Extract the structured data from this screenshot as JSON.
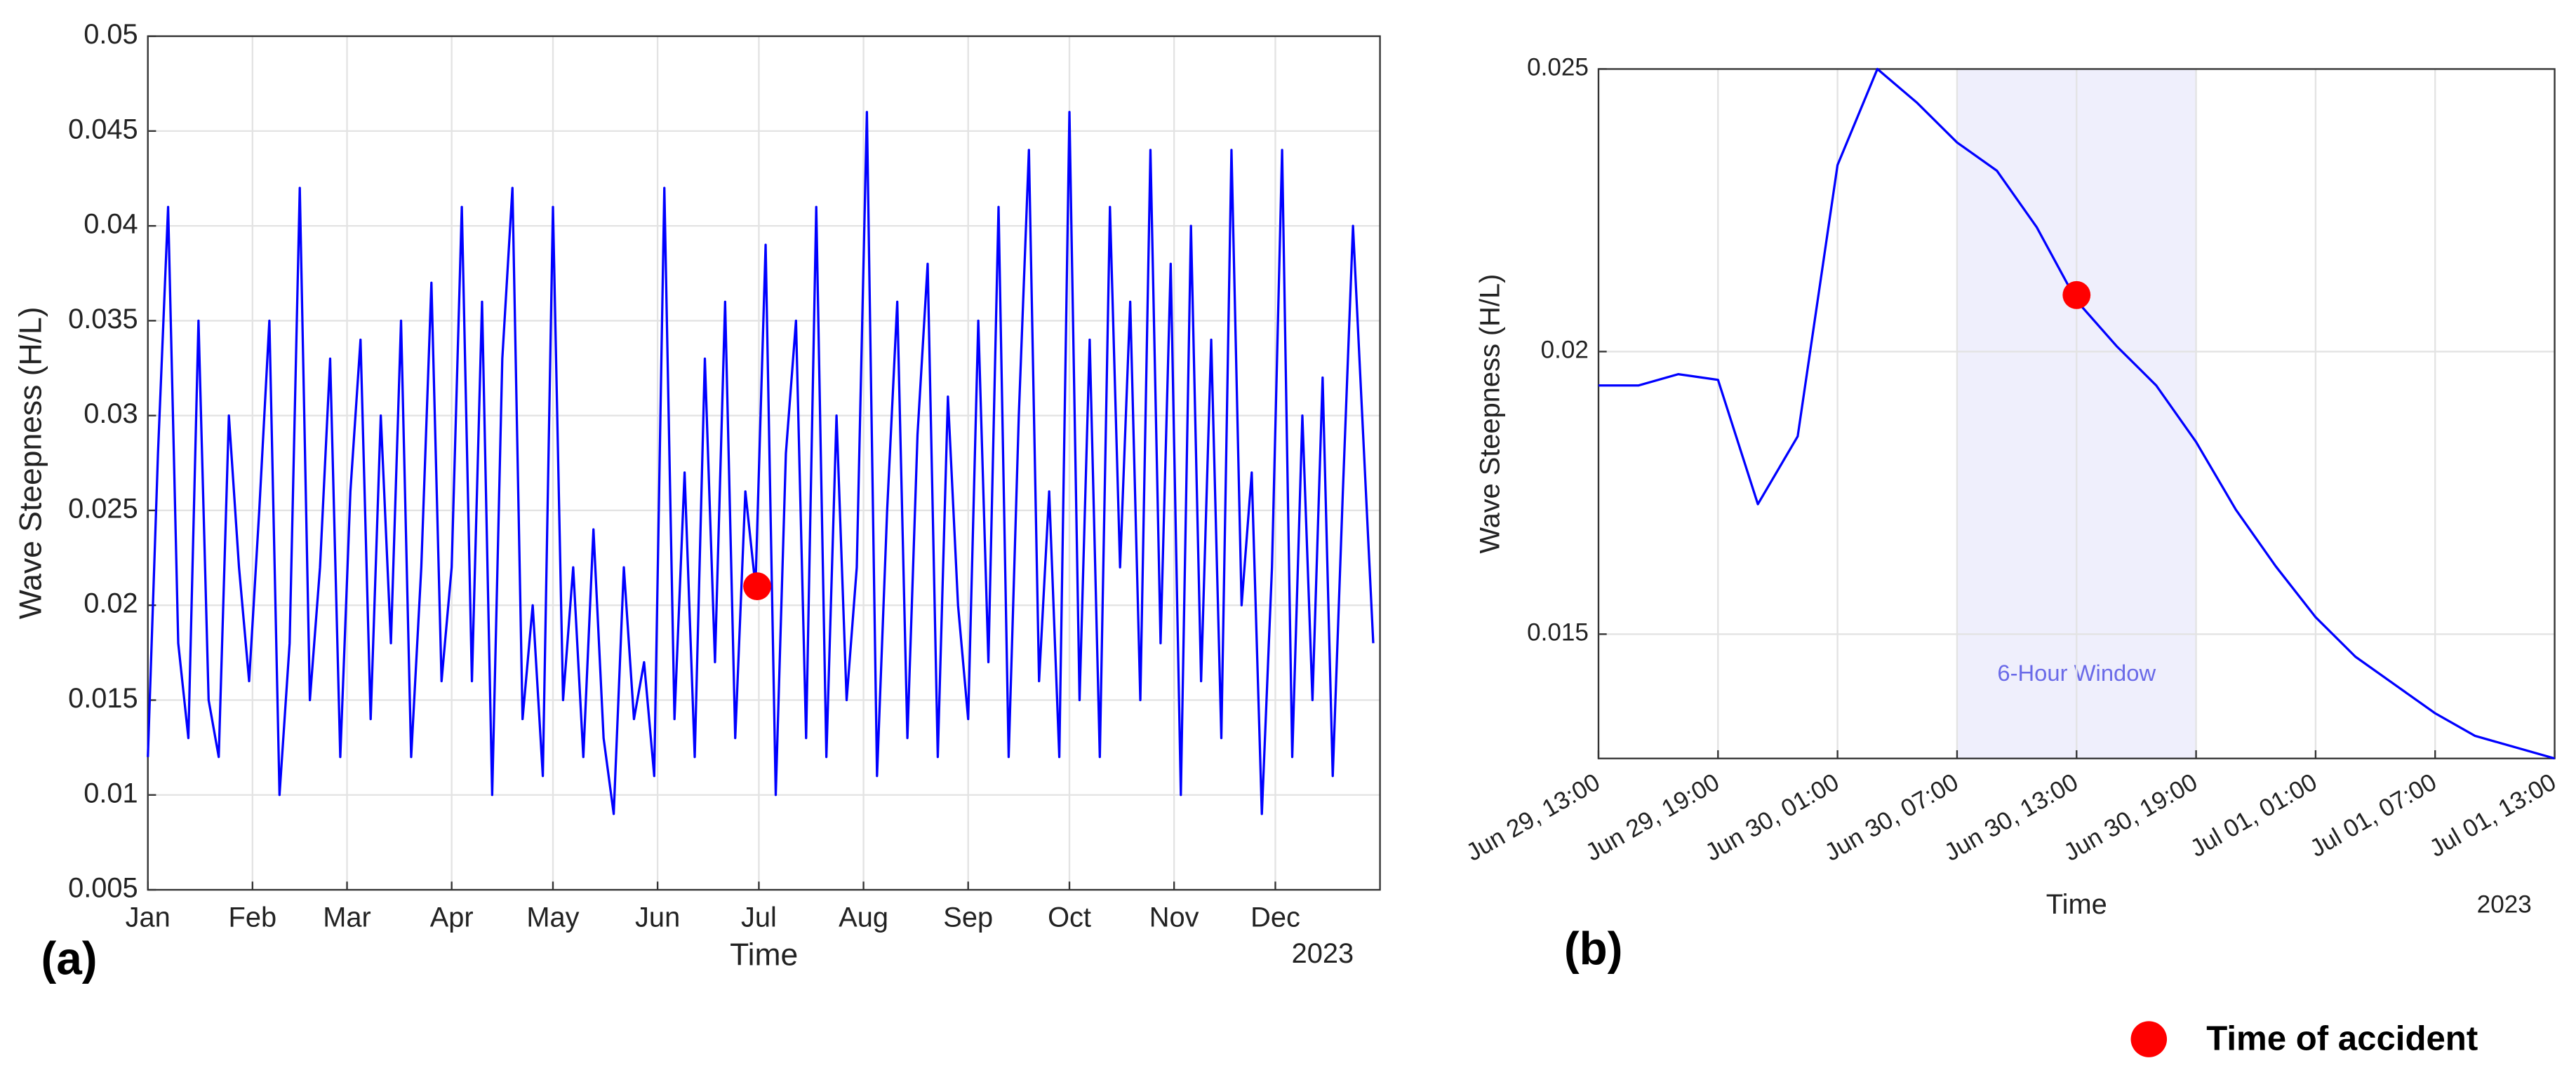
{
  "chart_data": [
    {
      "type": "line",
      "panel_label": "(a)",
      "x_label": "Time",
      "y_label": "Wave Steepness (H/L)",
      "year_label": "2023",
      "xlim": [
        0,
        365
      ],
      "xticks": [
        {
          "value": 0,
          "label": "Jan"
        },
        {
          "value": 31,
          "label": "Feb"
        },
        {
          "value": 59,
          "label": "Mar"
        },
        {
          "value": 90,
          "label": "Apr"
        },
        {
          "value": 120,
          "label": "May"
        },
        {
          "value": 151,
          "label": "Jun"
        },
        {
          "value": 181,
          "label": "Jul"
        },
        {
          "value": 212,
          "label": "Aug"
        },
        {
          "value": 243,
          "label": "Sep"
        },
        {
          "value": 273,
          "label": "Oct"
        },
        {
          "value": 304,
          "label": "Nov"
        },
        {
          "value": 334,
          "label": "Dec"
        }
      ],
      "ylim": [
        0.005,
        0.05
      ],
      "yticks": [
        0.005,
        0.01,
        0.015,
        0.02,
        0.025,
        0.03,
        0.035,
        0.04,
        0.045,
        0.05
      ],
      "grid": true,
      "x": [
        0,
        3,
        6,
        9,
        12,
        15,
        18,
        21,
        24,
        27,
        30,
        33,
        36,
        39,
        42,
        45,
        48,
        51,
        54,
        57,
        60,
        63,
        66,
        69,
        72,
        75,
        78,
        81,
        84,
        87,
        90,
        93,
        96,
        99,
        102,
        105,
        108,
        111,
        114,
        117,
        120,
        123,
        126,
        129,
        132,
        135,
        138,
        141,
        144,
        147,
        150,
        153,
        156,
        159,
        162,
        165,
        168,
        171,
        174,
        177,
        180,
        183,
        186,
        189,
        192,
        195,
        198,
        201,
        204,
        207,
        210,
        213,
        216,
        219,
        222,
        225,
        228,
        231,
        234,
        237,
        240,
        243,
        246,
        249,
        252,
        255,
        258,
        261,
        264,
        267,
        270,
        273,
        276,
        279,
        282,
        285,
        288,
        291,
        294,
        297,
        300,
        303,
        306,
        309,
        312,
        315,
        318,
        321,
        324,
        327,
        330,
        333,
        336,
        339,
        342,
        345,
        348,
        351,
        354,
        357,
        360,
        363
      ],
      "series": [
        {
          "name": "Wave Steepness",
          "color": "#0000ff",
          "values": [
            0.012,
            0.028,
            0.041,
            0.018,
            0.013,
            0.035,
            0.015,
            0.012,
            0.03,
            0.022,
            0.016,
            0.025,
            0.035,
            0.01,
            0.018,
            0.042,
            0.015,
            0.022,
            0.033,
            0.012,
            0.026,
            0.034,
            0.014,
            0.03,
            0.018,
            0.035,
            0.012,
            0.022,
            0.037,
            0.016,
            0.022,
            0.041,
            0.016,
            0.036,
            0.01,
            0.033,
            0.042,
            0.014,
            0.02,
            0.011,
            0.041,
            0.015,
            0.022,
            0.012,
            0.024,
            0.013,
            0.009,
            0.022,
            0.014,
            0.017,
            0.011,
            0.042,
            0.014,
            0.027,
            0.012,
            0.033,
            0.017,
            0.036,
            0.013,
            0.026,
            0.021,
            0.039,
            0.01,
            0.028,
            0.035,
            0.013,
            0.041,
            0.012,
            0.03,
            0.015,
            0.022,
            0.046,
            0.011,
            0.025,
            0.036,
            0.013,
            0.029,
            0.038,
            0.012,
            0.031,
            0.02,
            0.014,
            0.035,
            0.017,
            0.041,
            0.012,
            0.03,
            0.044,
            0.016,
            0.026,
            0.012,
            0.046,
            0.015,
            0.034,
            0.012,
            0.041,
            0.022,
            0.036,
            0.015,
            0.044,
            0.018,
            0.038,
            0.01,
            0.04,
            0.016,
            0.034,
            0.013,
            0.044,
            0.02,
            0.027,
            0.009,
            0.022,
            0.044,
            0.012,
            0.03,
            0.015,
            0.032,
            0.011,
            0.026,
            0.04,
            0.029,
            0.018
          ]
        }
      ],
      "accident": {
        "x": 180.5,
        "y": 0.021,
        "color": "#ff0000"
      }
    },
    {
      "type": "line",
      "panel_label": "(b)",
      "x_label": "Time",
      "y_label": "Wave Steepness (H/L)",
      "year_label": "2023",
      "xlim": [
        "Jun 29, 13:00",
        "Jul 01, 13:00"
      ],
      "xticks": [
        "Jun 29, 13:00",
        "Jun 29, 19:00",
        "Jun 30, 01:00",
        "Jun 30, 07:00",
        "Jun 30, 13:00",
        "Jun 30, 19:00",
        "Jul 01, 01:00",
        "Jul 01, 07:00",
        "Jul 01, 13:00"
      ],
      "ylim": [
        0.0128,
        0.025
      ],
      "yticks": [
        0.015,
        0.02,
        0.025
      ],
      "grid": true,
      "x": [
        "Jun 29, 13:00",
        "Jun 29, 15:00",
        "Jun 29, 17:00",
        "Jun 29, 19:00",
        "Jun 29, 21:00",
        "Jun 29, 23:00",
        "Jun 30, 01:00",
        "Jun 30, 03:00",
        "Jun 30, 05:00",
        "Jun 30, 07:00",
        "Jun 30, 09:00",
        "Jun 30, 11:00",
        "Jun 30, 13:00",
        "Jun 30, 15:00",
        "Jun 30, 17:00",
        "Jun 30, 19:00",
        "Jun 30, 21:00",
        "Jun 30, 23:00",
        "Jul 01, 01:00",
        "Jul 01, 03:00",
        "Jul 01, 05:00",
        "Jul 01, 07:00",
        "Jul 01, 09:00",
        "Jul 01, 11:00",
        "Jul 01, 13:00"
      ],
      "series": [
        {
          "name": "Wave Steepness",
          "color": "#0000ff",
          "values": [
            0.0194,
            0.0194,
            0.0196,
            0.0195,
            0.0173,
            0.0185,
            0.0233,
            0.025,
            0.0244,
            0.0237,
            0.0232,
            0.0222,
            0.0209,
            0.0201,
            0.0194,
            0.0184,
            0.0172,
            0.0162,
            0.0153,
            0.0146,
            0.0141,
            0.0136,
            0.0132,
            0.013,
            0.0128
          ]
        }
      ],
      "window": {
        "start": "Jun 30, 07:00",
        "end": "Jun 30, 19:00",
        "label": "6-Hour Window",
        "color": "#d8d8f8"
      },
      "accident": {
        "x": "Jun 30, 13:00",
        "y": 0.021,
        "color": "#ff0000"
      }
    }
  ],
  "legend": {
    "label": "Time of accident",
    "color": "#ff0000"
  }
}
